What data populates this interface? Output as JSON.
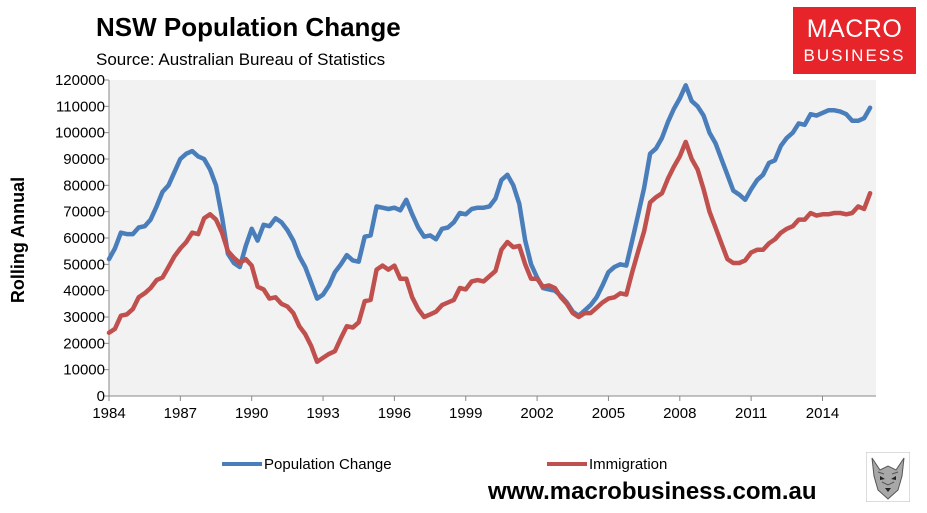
{
  "header": {
    "title": "NSW Population Change",
    "subtitle": "Source: Australian Bureau of Statistics"
  },
  "logo": {
    "line1": "MACRO",
    "line2": "BUSINESS",
    "color": "#e8242b"
  },
  "footer": {
    "website": "www.macrobusiness.com.au"
  },
  "chart_data": {
    "type": "line",
    "title": "NSW Population Change",
    "subtitle": "Source: Australian Bureau of Statistics",
    "xlabel": "",
    "ylabel": "Rolling Annual",
    "xlim": [
      1984,
      2016.25
    ],
    "ylim": [
      0,
      120000
    ],
    "yticks": [
      0,
      10000,
      20000,
      30000,
      40000,
      50000,
      60000,
      70000,
      80000,
      90000,
      100000,
      110000,
      120000
    ],
    "xticks": [
      1984,
      1987,
      1990,
      1993,
      1996,
      1999,
      2002,
      2005,
      2008,
      2011,
      2014
    ],
    "grid": false,
    "legend_position": "bottom",
    "plot_background": "#f2f2f2",
    "series": [
      {
        "name": "Population Change",
        "color": "#4a7ebb",
        "points": [
          [
            1984.0,
            52000
          ],
          [
            1984.25,
            56000
          ],
          [
            1984.5,
            62000
          ],
          [
            1984.75,
            61500
          ],
          [
            1985.0,
            61500
          ],
          [
            1985.25,
            64000
          ],
          [
            1985.5,
            64500
          ],
          [
            1985.75,
            67000
          ],
          [
            1986.0,
            72000
          ],
          [
            1986.25,
            77500
          ],
          [
            1986.5,
            80000
          ],
          [
            1986.75,
            85000
          ],
          [
            1987.0,
            90000
          ],
          [
            1987.25,
            92000
          ],
          [
            1987.5,
            93000
          ],
          [
            1987.75,
            91000
          ],
          [
            1988.0,
            90000
          ],
          [
            1988.25,
            86000
          ],
          [
            1988.5,
            80000
          ],
          [
            1988.75,
            68000
          ],
          [
            1989.0,
            54000
          ],
          [
            1989.25,
            50500
          ],
          [
            1989.5,
            49000
          ],
          [
            1989.75,
            57000
          ],
          [
            1990.0,
            63500
          ],
          [
            1990.25,
            59000
          ],
          [
            1990.5,
            65000
          ],
          [
            1990.75,
            64500
          ],
          [
            1991.0,
            67500
          ],
          [
            1991.25,
            66000
          ],
          [
            1991.5,
            63000
          ],
          [
            1991.75,
            59000
          ],
          [
            1992.0,
            53000
          ],
          [
            1992.25,
            49000
          ],
          [
            1992.5,
            43000
          ],
          [
            1992.75,
            37000
          ],
          [
            1993.0,
            38500
          ],
          [
            1993.25,
            42000
          ],
          [
            1993.5,
            47000
          ],
          [
            1993.75,
            50000
          ],
          [
            1994.0,
            53500
          ],
          [
            1994.25,
            51500
          ],
          [
            1994.5,
            51000
          ],
          [
            1994.75,
            60500
          ],
          [
            1995.0,
            61000
          ],
          [
            1995.25,
            72000
          ],
          [
            1995.5,
            71500
          ],
          [
            1995.75,
            71000
          ],
          [
            1996.0,
            71500
          ],
          [
            1996.25,
            70500
          ],
          [
            1996.5,
            74500
          ],
          [
            1996.75,
            69000
          ],
          [
            1997.0,
            64000
          ],
          [
            1997.25,
            60500
          ],
          [
            1997.5,
            61000
          ],
          [
            1997.75,
            59500
          ],
          [
            1998.0,
            63500
          ],
          [
            1998.25,
            64000
          ],
          [
            1998.5,
            66000
          ],
          [
            1998.75,
            69500
          ],
          [
            1999.0,
            69000
          ],
          [
            1999.25,
            71000
          ],
          [
            1999.5,
            71500
          ],
          [
            1999.75,
            71500
          ],
          [
            2000.0,
            72000
          ],
          [
            2000.25,
            75000
          ],
          [
            2000.5,
            82000
          ],
          [
            2000.75,
            84000
          ],
          [
            2001.0,
            80000
          ],
          [
            2001.25,
            73000
          ],
          [
            2001.5,
            59000
          ],
          [
            2001.75,
            50000
          ],
          [
            2002.0,
            45000
          ],
          [
            2002.25,
            41000
          ],
          [
            2002.5,
            40500
          ],
          [
            2002.75,
            40000
          ],
          [
            2003.0,
            38000
          ],
          [
            2003.25,
            35500
          ],
          [
            2003.5,
            32000
          ],
          [
            2003.75,
            30500
          ],
          [
            2004.0,
            32500
          ],
          [
            2004.25,
            34500
          ],
          [
            2004.5,
            37500
          ],
          [
            2004.75,
            42000
          ],
          [
            2005.0,
            47000
          ],
          [
            2005.25,
            49000
          ],
          [
            2005.5,
            50000
          ],
          [
            2005.75,
            49500
          ],
          [
            2006.0,
            59000
          ],
          [
            2006.25,
            69000
          ],
          [
            2006.5,
            79000
          ],
          [
            2006.75,
            92000
          ],
          [
            2007.0,
            94000
          ],
          [
            2007.25,
            98000
          ],
          [
            2007.5,
            104000
          ],
          [
            2007.75,
            109000
          ],
          [
            2008.0,
            113000
          ],
          [
            2008.25,
            118000
          ],
          [
            2008.5,
            112000
          ],
          [
            2008.75,
            110000
          ],
          [
            2009.0,
            106500
          ],
          [
            2009.25,
            100000
          ],
          [
            2009.5,
            96000
          ],
          [
            2009.75,
            90000
          ],
          [
            2010.0,
            84000
          ],
          [
            2010.25,
            78000
          ],
          [
            2010.5,
            76500
          ],
          [
            2010.75,
            74500
          ],
          [
            2011.0,
            78500
          ],
          [
            2011.25,
            82000
          ],
          [
            2011.5,
            84000
          ],
          [
            2011.75,
            88500
          ],
          [
            2012.0,
            89500
          ],
          [
            2012.25,
            95000
          ],
          [
            2012.5,
            98000
          ],
          [
            2012.75,
            100000
          ],
          [
            2013.0,
            103500
          ],
          [
            2013.25,
            103000
          ],
          [
            2013.5,
            107000
          ],
          [
            2013.75,
            106500
          ],
          [
            2014.0,
            107500
          ],
          [
            2014.25,
            108500
          ],
          [
            2014.5,
            108500
          ],
          [
            2014.75,
            108000
          ],
          [
            2015.0,
            107000
          ],
          [
            2015.25,
            104500
          ],
          [
            2015.5,
            104500
          ],
          [
            2015.75,
            105500
          ],
          [
            2016.0,
            109500
          ]
        ]
      },
      {
        "name": "Immigration",
        "color": "#c0504d",
        "points": [
          [
            1984.0,
            24000
          ],
          [
            1984.25,
            25500
          ],
          [
            1984.5,
            30500
          ],
          [
            1984.75,
            31000
          ],
          [
            1985.0,
            33000
          ],
          [
            1985.25,
            37500
          ],
          [
            1985.5,
            39000
          ],
          [
            1985.75,
            41000
          ],
          [
            1986.0,
            44000
          ],
          [
            1986.25,
            45000
          ],
          [
            1986.5,
            49000
          ],
          [
            1986.75,
            53000
          ],
          [
            1987.0,
            56000
          ],
          [
            1987.25,
            58500
          ],
          [
            1987.5,
            62000
          ],
          [
            1987.75,
            61500
          ],
          [
            1988.0,
            67500
          ],
          [
            1988.25,
            69000
          ],
          [
            1988.5,
            67000
          ],
          [
            1988.75,
            62000
          ],
          [
            1989.0,
            55000
          ],
          [
            1989.25,
            52500
          ],
          [
            1989.5,
            50500
          ],
          [
            1989.75,
            52000
          ],
          [
            1990.0,
            49500
          ],
          [
            1990.25,
            41500
          ],
          [
            1990.5,
            40500
          ],
          [
            1990.75,
            37000
          ],
          [
            1991.0,
            37500
          ],
          [
            1991.25,
            35000
          ],
          [
            1991.5,
            34000
          ],
          [
            1991.75,
            31500
          ],
          [
            1992.0,
            26500
          ],
          [
            1992.25,
            23500
          ],
          [
            1992.5,
            19000
          ],
          [
            1992.75,
            13000
          ],
          [
            1993.0,
            14500
          ],
          [
            1993.25,
            16000
          ],
          [
            1993.5,
            17000
          ],
          [
            1993.75,
            22000
          ],
          [
            1994.0,
            26500
          ],
          [
            1994.25,
            26000
          ],
          [
            1994.5,
            28000
          ],
          [
            1994.75,
            36000
          ],
          [
            1995.0,
            36500
          ],
          [
            1995.25,
            48000
          ],
          [
            1995.5,
            49500
          ],
          [
            1995.75,
            48000
          ],
          [
            1996.0,
            49500
          ],
          [
            1996.25,
            44500
          ],
          [
            1996.5,
            44500
          ],
          [
            1996.75,
            37500
          ],
          [
            1997.0,
            33000
          ],
          [
            1997.25,
            30000
          ],
          [
            1997.5,
            31000
          ],
          [
            1997.75,
            32000
          ],
          [
            1998.0,
            34500
          ],
          [
            1998.25,
            35500
          ],
          [
            1998.5,
            36500
          ],
          [
            1998.75,
            41000
          ],
          [
            1999.0,
            40500
          ],
          [
            1999.25,
            43500
          ],
          [
            1999.5,
            44000
          ],
          [
            1999.75,
            43500
          ],
          [
            2000.0,
            45500
          ],
          [
            2000.25,
            47500
          ],
          [
            2000.5,
            55500
          ],
          [
            2000.75,
            58500
          ],
          [
            2001.0,
            56500
          ],
          [
            2001.25,
            57000
          ],
          [
            2001.5,
            50000
          ],
          [
            2001.75,
            44500
          ],
          [
            2002.0,
            44500
          ],
          [
            2002.25,
            41500
          ],
          [
            2002.5,
            42000
          ],
          [
            2002.75,
            41000
          ],
          [
            2003.0,
            37500
          ],
          [
            2003.25,
            35000
          ],
          [
            2003.5,
            31500
          ],
          [
            2003.75,
            30000
          ],
          [
            2004.0,
            31500
          ],
          [
            2004.25,
            31500
          ],
          [
            2004.5,
            33500
          ],
          [
            2004.75,
            35500
          ],
          [
            2005.0,
            37000
          ],
          [
            2005.25,
            37500
          ],
          [
            2005.5,
            39000
          ],
          [
            2005.75,
            38500
          ],
          [
            2006.0,
            47000
          ],
          [
            2006.25,
            55000
          ],
          [
            2006.5,
            62500
          ],
          [
            2006.75,
            73500
          ],
          [
            2007.0,
            75500
          ],
          [
            2007.25,
            77000
          ],
          [
            2007.5,
            82500
          ],
          [
            2007.75,
            87000
          ],
          [
            2008.0,
            91000
          ],
          [
            2008.25,
            96500
          ],
          [
            2008.5,
            90000
          ],
          [
            2008.75,
            86000
          ],
          [
            2009.0,
            78500
          ],
          [
            2009.25,
            70000
          ],
          [
            2009.5,
            64000
          ],
          [
            2009.75,
            58000
          ],
          [
            2010.0,
            52000
          ],
          [
            2010.25,
            50500
          ],
          [
            2010.5,
            50500
          ],
          [
            2010.75,
            51500
          ],
          [
            2011.0,
            54500
          ],
          [
            2011.25,
            55500
          ],
          [
            2011.5,
            55500
          ],
          [
            2011.75,
            58000
          ],
          [
            2012.0,
            59500
          ],
          [
            2012.25,
            62000
          ],
          [
            2012.5,
            63500
          ],
          [
            2012.75,
            64500
          ],
          [
            2013.0,
            67000
          ],
          [
            2013.25,
            67000
          ],
          [
            2013.5,
            69500
          ],
          [
            2013.75,
            68500
          ],
          [
            2014.0,
            69000
          ],
          [
            2014.25,
            69000
          ],
          [
            2014.5,
            69500
          ],
          [
            2014.75,
            69500
          ],
          [
            2015.0,
            69000
          ],
          [
            2015.25,
            69500
          ],
          [
            2015.5,
            72000
          ],
          [
            2015.75,
            71000
          ],
          [
            2016.0,
            77000
          ]
        ]
      }
    ]
  }
}
